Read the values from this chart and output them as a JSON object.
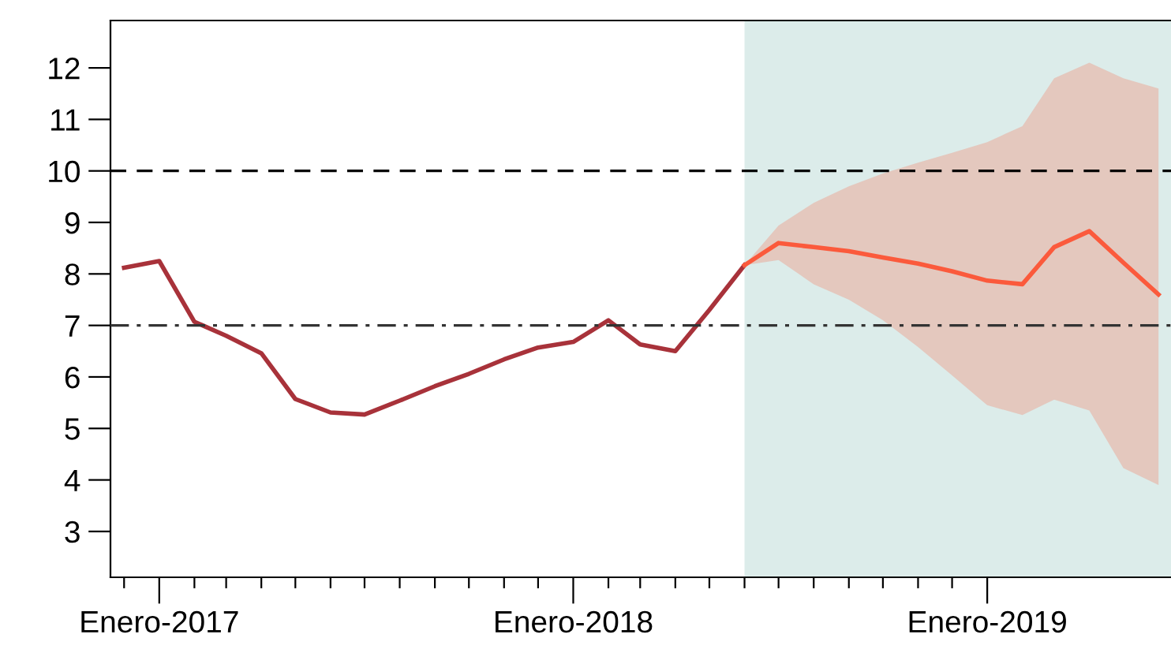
{
  "chart_data": {
    "type": "line",
    "xlim": [
      "2016-11-19",
      "2019-06-12"
    ],
    "ylim": [
      2.11,
      12.92
    ],
    "yticks": [
      3,
      4,
      5,
      6,
      7,
      8,
      9,
      10,
      11,
      12
    ],
    "xticks": [
      {
        "value": "2016-12",
        "label": null
      },
      {
        "value": "2017-01",
        "label": "Enero-2017"
      },
      {
        "value": "2017-02",
        "label": null
      },
      {
        "value": "2017-03",
        "label": null
      },
      {
        "value": "2017-04",
        "label": null
      },
      {
        "value": "2017-05",
        "label": null
      },
      {
        "value": "2017-06",
        "label": null
      },
      {
        "value": "2017-07",
        "label": null
      },
      {
        "value": "2017-08",
        "label": null
      },
      {
        "value": "2017-09",
        "label": null
      },
      {
        "value": "2017-10",
        "label": null
      },
      {
        "value": "2017-11",
        "label": null
      },
      {
        "value": "2017-12",
        "label": null
      },
      {
        "value": "2018-01",
        "label": "Enero-2018"
      },
      {
        "value": "2018-02",
        "label": null
      },
      {
        "value": "2018-03",
        "label": null
      },
      {
        "value": "2018-04",
        "label": null
      },
      {
        "value": "2018-05",
        "label": null
      },
      {
        "value": "2018-06",
        "label": null
      },
      {
        "value": "2018-07",
        "label": null
      },
      {
        "value": "2018-08",
        "label": null
      },
      {
        "value": "2018-09",
        "label": null
      },
      {
        "value": "2018-10",
        "label": null
      },
      {
        "value": "2018-11",
        "label": null
      },
      {
        "value": "2018-12",
        "label": null
      },
      {
        "value": "2019-01",
        "label": "Enero-2019"
      }
    ],
    "grid": false,
    "series": [
      {
        "color": "#a8323a",
        "x": [
          "2016-12",
          "2017-01",
          "2017-02",
          "2017-03",
          "2017-04",
          "2017-05",
          "2017-06",
          "2017-07",
          "2017-08",
          "2017-09",
          "2017-10",
          "2017-11",
          "2017-12",
          "2018-01",
          "2018-02",
          "2018-03",
          "2018-04",
          "2018-05",
          "2018-06"
        ],
        "values": [
          8.12,
          8.25,
          7.07,
          6.8,
          6.46,
          5.57,
          5.31,
          5.27,
          5.54,
          5.82,
          6.06,
          6.34,
          6.57,
          6.68,
          7.1,
          6.63,
          6.5,
          7.3,
          8.17
        ]
      },
      {
        "color": "#fb5a3c",
        "x": [
          "2018-06",
          "2018-07",
          "2018-08",
          "2018-09",
          "2018-10",
          "2018-11",
          "2018-12",
          "2019-01",
          "2019-02",
          "2019-03",
          "2019-04",
          "2019-05",
          "2019-06"
        ],
        "values": [
          8.17,
          8.6,
          8.52,
          8.44,
          8.32,
          8.2,
          8.05,
          7.87,
          7.8,
          8.52,
          8.83,
          8.22,
          7.6
        ],
        "lower": [
          8.17,
          8.27,
          7.8,
          7.5,
          7.1,
          6.58,
          6.03,
          5.45,
          5.26,
          5.56,
          5.35,
          4.23,
          3.9
        ],
        "upper": [
          8.17,
          8.94,
          9.38,
          9.7,
          9.95,
          10.16,
          10.35,
          10.56,
          10.87,
          11.8,
          12.1,
          11.8,
          11.6
        ]
      }
    ],
    "ref_lines": [
      {
        "axis": "y",
        "value": 10,
        "color": "#000000",
        "line_style": "dashed"
      },
      {
        "axis": "y",
        "value": 7,
        "color": "#333333",
        "line_style": "dashdot"
      }
    ],
    "bands": [
      {
        "axis": "x",
        "from": "2018-06",
        "to": "2019-06-12",
        "color": "#dcecea"
      }
    ]
  }
}
